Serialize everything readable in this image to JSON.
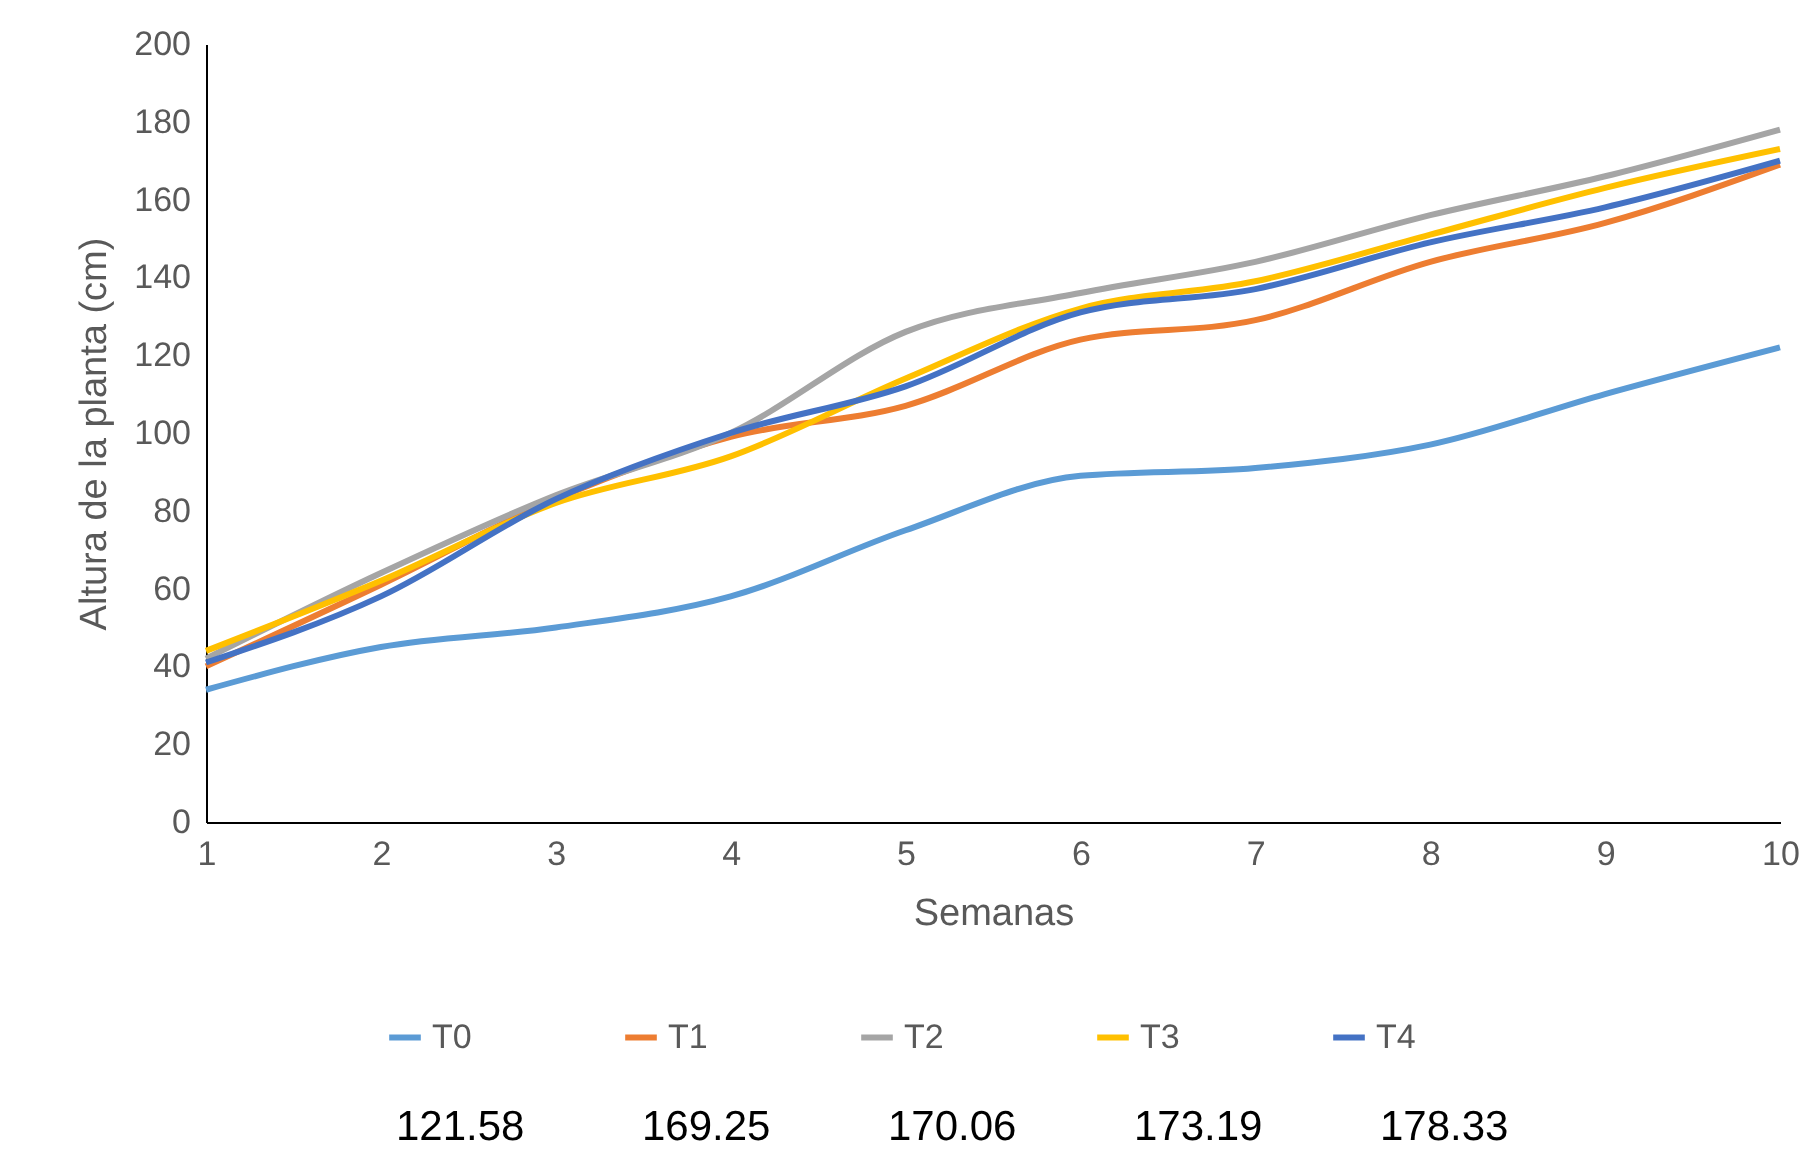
{
  "chart_data": {
    "type": "line",
    "xlabel": "Semanas",
    "ylabel": "Altura de la planta (cm)",
    "x": [
      1,
      2,
      3,
      4,
      5,
      6,
      7,
      8,
      9,
      10
    ],
    "xlim": [
      1,
      10
    ],
    "xticks": [
      1,
      2,
      3,
      4,
      5,
      6,
      7,
      8,
      9,
      10
    ],
    "ylim": [
      0,
      200
    ],
    "yticks": [
      0,
      20,
      40,
      60,
      80,
      100,
      120,
      140,
      160,
      180,
      200
    ],
    "grid": false,
    "legend": "bottom",
    "marker": "none",
    "line_style": "solid",
    "series": [
      {
        "name": "T0",
        "color": "#5b9bd5",
        "values": [
          34,
          45,
          50,
          58,
          75,
          89,
          91,
          97,
          110,
          122
        ]
      },
      {
        "name": "T1",
        "color": "#ed7d31",
        "values": [
          40,
          61,
          83,
          99,
          107,
          124,
          129,
          144,
          154,
          169
        ]
      },
      {
        "name": "T2",
        "color": "#a5a5a5",
        "values": [
          42,
          64,
          84,
          100,
          126,
          136,
          144,
          156,
          166,
          178
        ]
      },
      {
        "name": "T3",
        "color": "#ffc000",
        "values": [
          44,
          62,
          82,
          94,
          114,
          132,
          139,
          151,
          163,
          173
        ]
      },
      {
        "name": "T4",
        "color": "#4472c4",
        "values": [
          41,
          58,
          83,
          100,
          112,
          131,
          137,
          149,
          158,
          170
        ]
      }
    ],
    "annotations": [
      "121.58",
      "169.25",
      "170.06",
      "173.19",
      "178.33"
    ]
  }
}
